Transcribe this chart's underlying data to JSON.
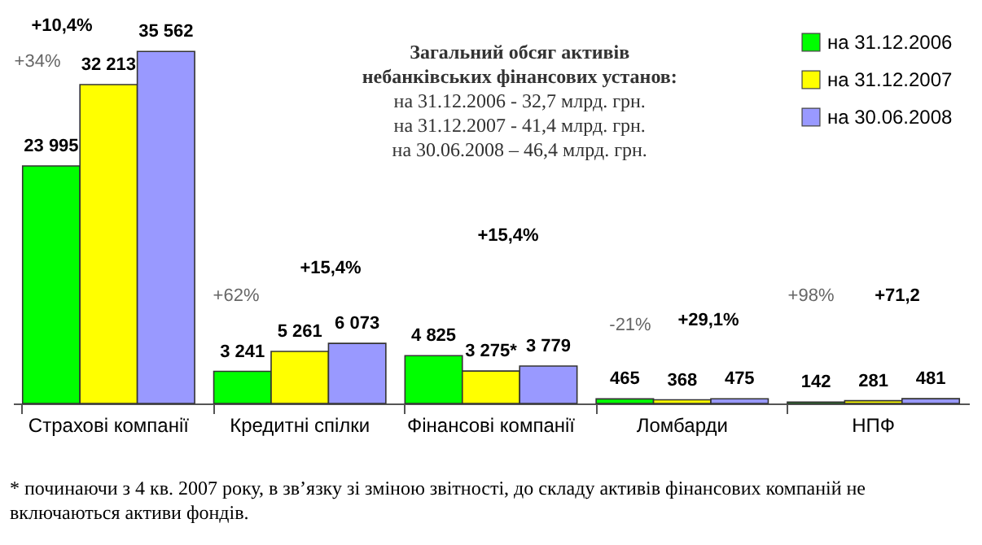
{
  "chart_data": {
    "type": "bar",
    "title": "Загальний обсяг активів небанківських фінансових установ:",
    "categories": [
      "Страхові компанії",
      "Кредитні спілки",
      "Фінансові компанії",
      "Ломбарди",
      "НПФ"
    ],
    "series": [
      {
        "name": "на 31.12.2006",
        "color": "#00ff00",
        "values": [
          23995,
          3241,
          4825,
          465,
          142
        ],
        "value_labels": [
          "23 995",
          "3 241",
          "4 825",
          "465",
          "142"
        ]
      },
      {
        "name": "на 31.12.2007",
        "color": "#ffff00",
        "values": [
          32213,
          5261,
          3275,
          368,
          281
        ],
        "value_labels": [
          "32 213",
          "5 261",
          "3 275*",
          "368",
          "281"
        ]
      },
      {
        "name": "на 30.06.2008",
        "color": "#9999ff",
        "values": [
          35562,
          6073,
          3779,
          475,
          481
        ],
        "value_labels": [
          "35 562",
          "6 073",
          "3 779",
          "475",
          "481"
        ]
      }
    ],
    "annotations": [
      "на 31.12.2006 - 32,7 млрд. грн.",
      "на 31.12.2007 - 41,4 млрд. грн.",
      "на 30.06.2008 – 46,4 млрд. грн.",
      "+34%",
      "+10,4%",
      "+62%",
      "+15,4%",
      "+15,4%",
      "-21%",
      "+29,1%",
      "+98%",
      "+71,2",
      "* починаючи з 4 кв. 2007 року, в зв’язку зі зміною звітності, до складу активів фінансових компаній не включаються активи фондів."
    ],
    "legend": "top right",
    "tick_labels": "x",
    "grid": false
  }
}
